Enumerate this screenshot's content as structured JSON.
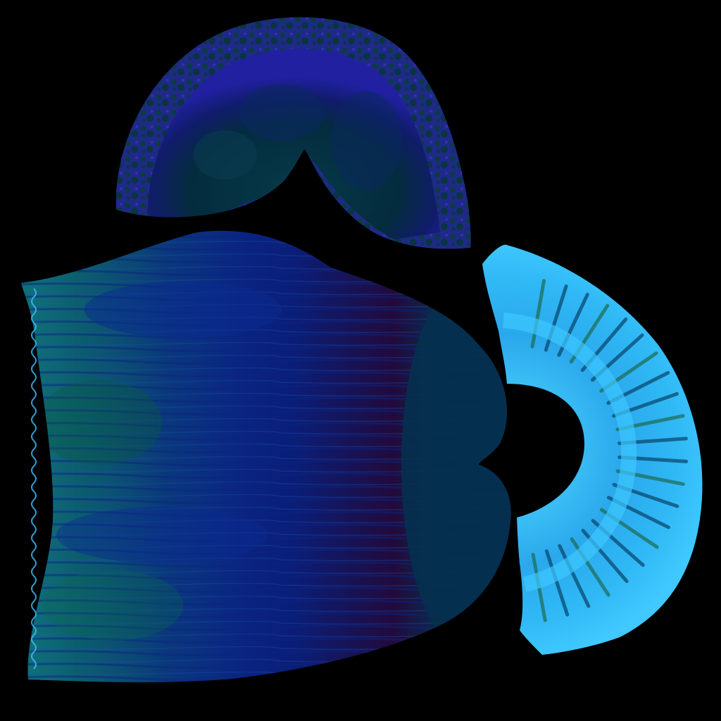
{
  "canvas": {
    "background": "#000000"
  },
  "texture_pieces": [
    {
      "name": "cap-piece",
      "shape": "arch-with-notch",
      "colors": {
        "fill": "#04303f",
        "inner": "#0a2a5a",
        "edge": "#2a2aa8",
        "speckle": "#0c3a46"
      }
    },
    {
      "name": "body-piece",
      "shape": "flared-sheet",
      "colors": {
        "left": "#1a7fd0",
        "mid": "#0a2a8a",
        "dark": "#240a3a",
        "right": "#053050",
        "green": "#0a5a40",
        "stitch": "#3fc0ff"
      }
    },
    {
      "name": "fan-piece",
      "shape": "half-ring",
      "colors": {
        "base": "#26a8ee",
        "light": "#3dc8ff",
        "stripe": "#0a4a70",
        "accent": "#1f6f5a"
      }
    }
  ]
}
